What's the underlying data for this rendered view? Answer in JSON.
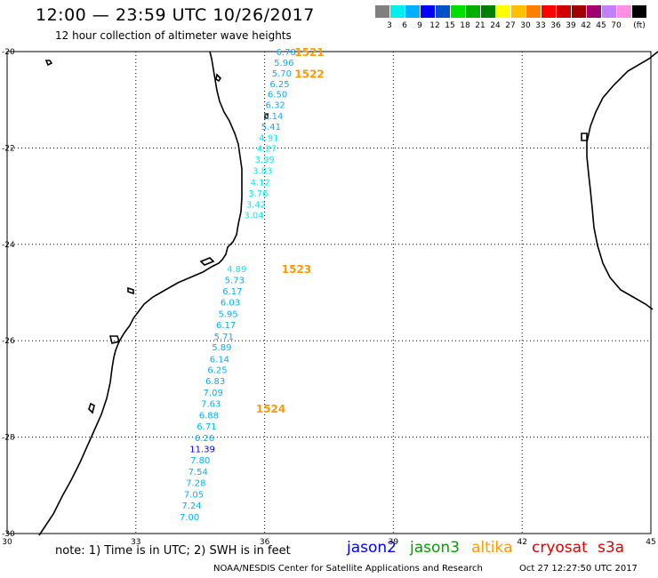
{
  "header": {
    "title": "12:00 — 23:59 UTC 10/26/2017",
    "subtitle": "12 hour collection of altimeter wave heights"
  },
  "legend": {
    "unit": "(ft)",
    "colors": [
      "#808080",
      "#00f0f0",
      "#00b0ff",
      "#0000ff",
      "#0050c8",
      "#00e000",
      "#00b000",
      "#008000",
      "#ffff00",
      "#ffc000",
      "#ff8000",
      "#ff0000",
      "#d00000",
      "#a00000",
      "#a00070",
      "#c080ff",
      "#ff90e0",
      "#000000"
    ],
    "labels": [
      "3",
      "6",
      "9",
      "12",
      "15",
      "18",
      "21",
      "24",
      "27",
      "30",
      "33",
      "36",
      "39",
      "42",
      "45",
      "70"
    ]
  },
  "map": {
    "lat_labels": [
      "-20",
      "-22",
      "-24",
      "-26",
      "-28",
      "-30"
    ],
    "lon_labels": [
      "30",
      "33",
      "36",
      "39",
      "42",
      "45"
    ],
    "passes": [
      {
        "label": "1521",
        "lat": -20.0,
        "lon": 36.2
      },
      {
        "label": "1522",
        "lat": -20.45,
        "lon": 36.2
      },
      {
        "label": "1523",
        "lat": -24.5,
        "lon": 35.9
      },
      {
        "label": "1524",
        "lat": -27.4,
        "lon": 35.3
      }
    ],
    "wave_heights": [
      {
        "v": "6.78",
        "lat": -20.0,
        "lon": 36.5,
        "c": "#00b0ff"
      },
      {
        "v": "5.96",
        "lat": -20.22,
        "lon": 36.45,
        "c": "#00b0ff"
      },
      {
        "v": "5.70",
        "lat": -20.44,
        "lon": 36.4,
        "c": "#00b0ff"
      },
      {
        "v": "6.25",
        "lat": -20.66,
        "lon": 36.35,
        "c": "#00b0ff"
      },
      {
        "v": "6.50",
        "lat": -20.88,
        "lon": 36.3,
        "c": "#00b0ff"
      },
      {
        "v": "6.32",
        "lat": -21.1,
        "lon": 36.25,
        "c": "#00b0ff"
      },
      {
        "v": "5.14",
        "lat": -21.33,
        "lon": 36.2,
        "c": "#00b0ff"
      },
      {
        "v": "5.41",
        "lat": -21.55,
        "lon": 36.15,
        "c": "#00b0ff"
      },
      {
        "v": "4.91",
        "lat": -21.78,
        "lon": 36.1,
        "c": "#00f0f0"
      },
      {
        "v": "4.27",
        "lat": -22.0,
        "lon": 36.05,
        "c": "#00f0f0"
      },
      {
        "v": "3.99",
        "lat": -22.23,
        "lon": 36.0,
        "c": "#00f0f0"
      },
      {
        "v": "3.83",
        "lat": -22.46,
        "lon": 35.95,
        "c": "#00f0f0"
      },
      {
        "v": "4.12",
        "lat": -22.7,
        "lon": 35.9,
        "c": "#00f0f0"
      },
      {
        "v": "3.76",
        "lat": -22.93,
        "lon": 35.85,
        "c": "#00f0f0"
      },
      {
        "v": "3.42",
        "lat": -23.16,
        "lon": 35.8,
        "c": "#00f0f0"
      },
      {
        "v": "3.04",
        "lat": -23.39,
        "lon": 35.75,
        "c": "#00f0f0"
      },
      {
        "v": "4.89",
        "lat": -24.5,
        "lon": 35.35,
        "c": "#00f0f0"
      },
      {
        "v": "5.73",
        "lat": -24.73,
        "lon": 35.3,
        "c": "#00b0ff"
      },
      {
        "v": "6.17",
        "lat": -24.96,
        "lon": 35.25,
        "c": "#00b0ff"
      },
      {
        "v": "6.03",
        "lat": -25.19,
        "lon": 35.2,
        "c": "#00b0ff"
      },
      {
        "v": "5.95",
        "lat": -25.43,
        "lon": 35.15,
        "c": "#00b0ff"
      },
      {
        "v": "6.17",
        "lat": -25.66,
        "lon": 35.1,
        "c": "#00b0ff"
      },
      {
        "v": "5.71",
        "lat": -25.9,
        "lon": 35.05,
        "c": "#00b0ff"
      },
      {
        "v": "5.89",
        "lat": -26.13,
        "lon": 35.0,
        "c": "#00b0ff"
      },
      {
        "v": "6.14",
        "lat": -26.37,
        "lon": 34.95,
        "c": "#00b0ff"
      },
      {
        "v": "6.25",
        "lat": -26.6,
        "lon": 34.9,
        "c": "#00b0ff"
      },
      {
        "v": "6.83",
        "lat": -26.83,
        "lon": 34.85,
        "c": "#00b0ff"
      },
      {
        "v": "7.09",
        "lat": -27.07,
        "lon": 34.8,
        "c": "#00b0ff"
      },
      {
        "v": "7.63",
        "lat": -27.3,
        "lon": 34.75,
        "c": "#00b0ff"
      },
      {
        "v": "6.88",
        "lat": -27.54,
        "lon": 34.7,
        "c": "#00b0ff"
      },
      {
        "v": "6.71",
        "lat": -27.77,
        "lon": 34.65,
        "c": "#00b0ff"
      },
      {
        "v": "6.26",
        "lat": -28.01,
        "lon": 34.6,
        "c": "#00b0ff"
      },
      {
        "v": "11.39",
        "lat": -28.24,
        "lon": 34.55,
        "c": "#0000ff"
      },
      {
        "v": "7.80",
        "lat": -28.47,
        "lon": 34.5,
        "c": "#00b0ff"
      },
      {
        "v": "7.54",
        "lat": -28.71,
        "lon": 34.45,
        "c": "#00b0ff"
      },
      {
        "v": "7.28",
        "lat": -28.94,
        "lon": 34.4,
        "c": "#00b0ff"
      },
      {
        "v": "7.05",
        "lat": -29.18,
        "lon": 34.35,
        "c": "#00b0ff"
      },
      {
        "v": "7.24",
        "lat": -29.41,
        "lon": 34.3,
        "c": "#00b0ff"
      },
      {
        "v": "7.00",
        "lat": -29.65,
        "lon": 34.25,
        "c": "#00b0ff"
      }
    ]
  },
  "footer": {
    "note": "note: 1) Time is in UTC; 2) SWH is in feet",
    "satellites": [
      {
        "name": "jason2",
        "color": "#0000ff"
      },
      {
        "name": "jason3",
        "color": "#00a000"
      },
      {
        "name": "altika",
        "color": "#ff9900"
      },
      {
        "name": "cryosat",
        "color": "#e00000"
      },
      {
        "name": "s3a",
        "color": "#e00000"
      }
    ],
    "credit": "NOAA/NESDIS Center for Satellite Applications and Research",
    "timestamp": "Oct 27 12:27:50 UTC 2017"
  }
}
